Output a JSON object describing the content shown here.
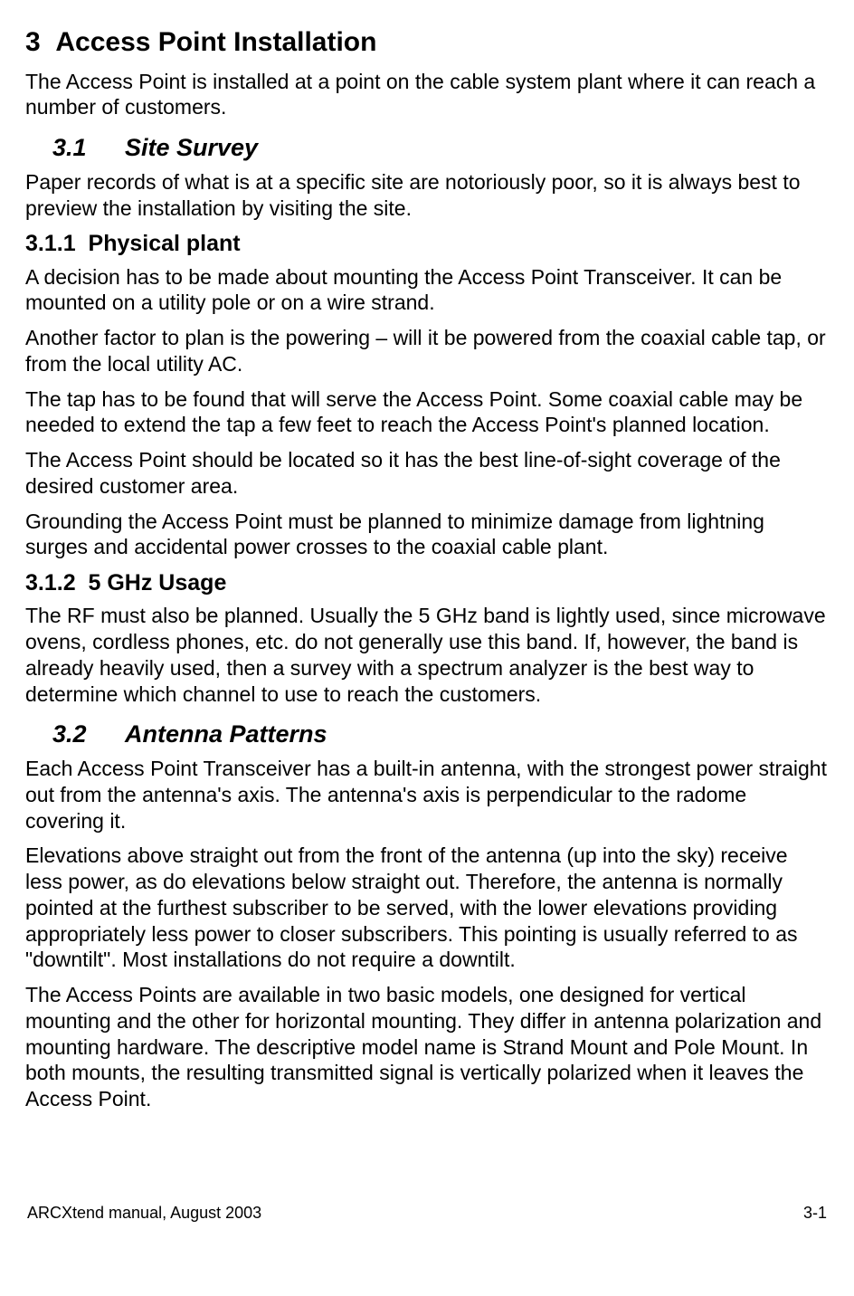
{
  "h1": {
    "num": "3",
    "title": "Access Point Installation"
  },
  "intro": "The Access Point is installed at a point on the cable system plant where it can reach a number of customers.",
  "s31": {
    "num": "3.1",
    "title": "Site Survey",
    "intro": "Paper records of what is at a specific site are notoriously poor, so it is always best to preview the installation by visiting the site."
  },
  "s311": {
    "num": "3.1.1",
    "title": "Physical plant",
    "p1": "A decision has to be made about mounting the Access Point Transceiver.  It can be mounted on a utility pole or on a wire strand.",
    "p2": "Another factor to plan is the powering – will it be powered from the coaxial cable tap, or from the local utility AC.",
    "p3": "The tap has to be found that will serve the Access Point.  Some coaxial cable may be needed to extend the tap a few feet to reach the Access Point's planned location.",
    "p4": "The Access Point should be located so it has the best line-of-sight coverage of the desired customer area.",
    "p5": "Grounding the Access Point must be planned to minimize damage from lightning surges and accidental power crosses to the coaxial cable plant."
  },
  "s312": {
    "num": "3.1.2",
    "title": "5 GHz Usage",
    "p1": "The RF must also be planned.  Usually the 5 GHz band is lightly used, since microwave ovens, cordless phones, etc. do not generally use this band.  If, however, the band is already heavily used, then a survey with a spectrum analyzer is the best way to determine which channel to use to reach the customers."
  },
  "s32": {
    "num": "3.2",
    "title": "Antenna Patterns",
    "p1": "Each Access Point Transceiver has a built-in antenna, with the strongest power straight out from the antenna's axis.  The antenna's axis is perpendicular to the radome covering it.",
    "p2": "Elevations above straight out from the front of the antenna (up into the sky) receive less power, as do elevations below straight out.  Therefore, the antenna is normally pointed at the furthest subscriber to be served, with the lower elevations providing appropriately less power to closer subscribers.  This pointing is usually referred to as \"downtilt\".  Most installations do not require a downtilt.",
    "p3": "The Access Points are available in two basic models, one designed for vertical mounting and the other for horizontal mounting.  They differ in antenna polarization and mounting hardware.  The descriptive model name is Strand Mount and Pole Mount.  In both mounts, the resulting transmitted signal is vertically polarized when it leaves the Access Point."
  },
  "footer": {
    "left": "ARCXtend manual, August 2003",
    "right": "3-1"
  }
}
